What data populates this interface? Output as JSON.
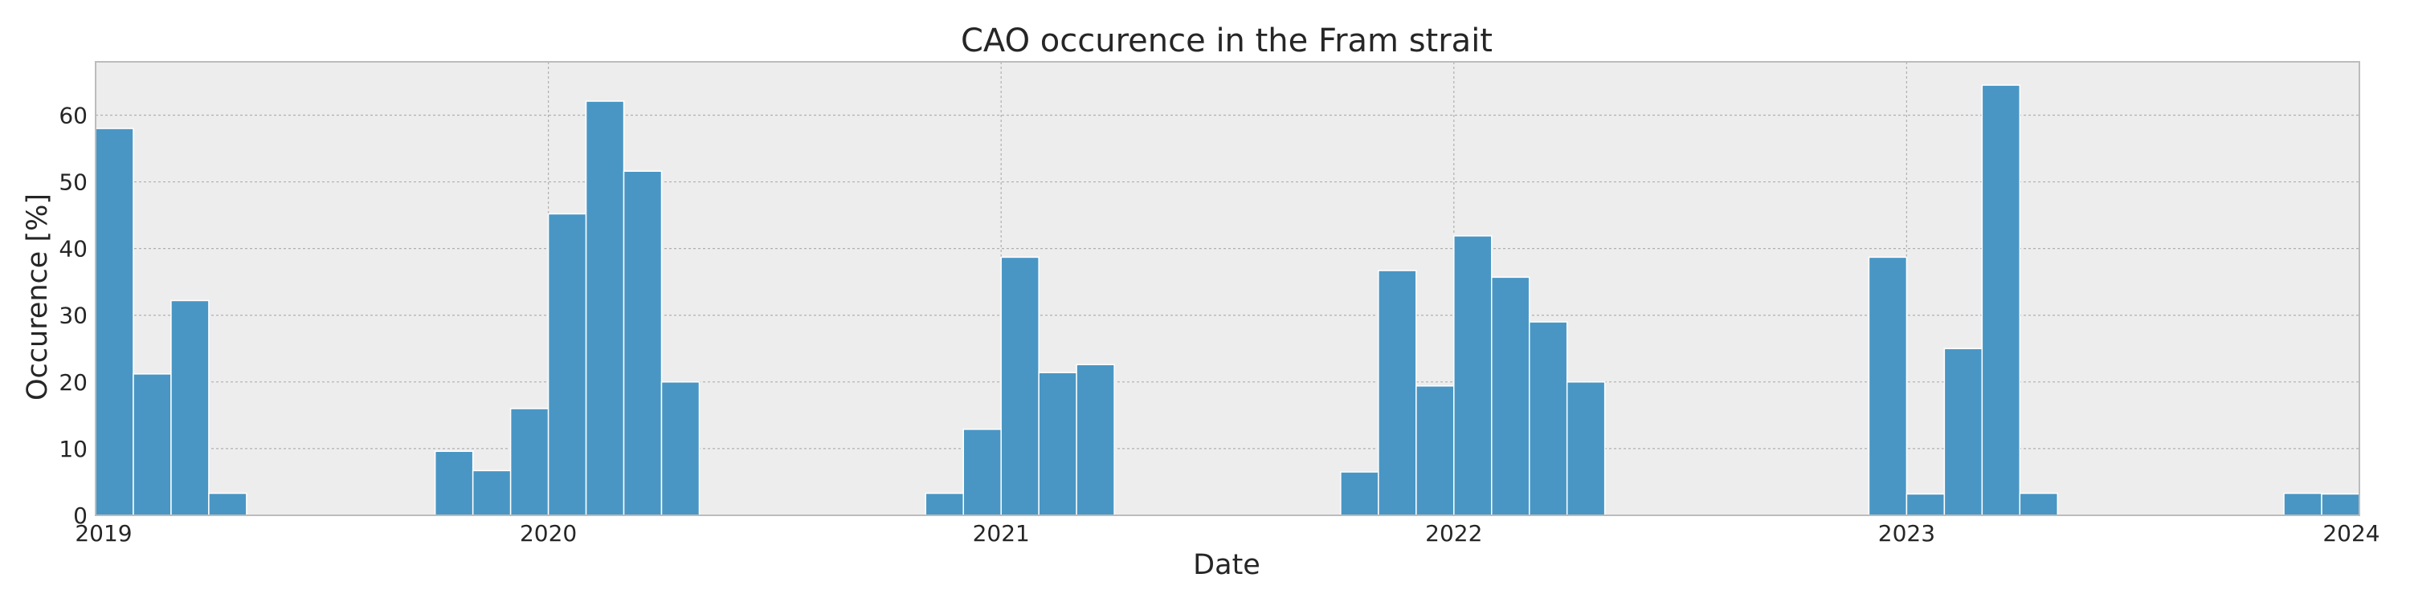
{
  "chart_data": {
    "type": "bar",
    "title": "CAO occurence in the Fram strait",
    "xlabel": "Date",
    "ylabel": "Occurence [%]",
    "x_axis_type": "date",
    "xlim": [
      "2019-01-01",
      "2024-01-01"
    ],
    "ylim": [
      0,
      68
    ],
    "xticks": [
      "2019",
      "2020",
      "2021",
      "2022",
      "2023",
      "2024"
    ],
    "yticks": [
      0,
      10,
      20,
      30,
      40,
      50,
      60
    ],
    "grid": true,
    "legend": "none",
    "bar_color": "#4996c4",
    "background_color": "#ededed",
    "bars": [
      {
        "start": "2019-01",
        "value": 58.0
      },
      {
        "start": "2019-02",
        "value": 21.2
      },
      {
        "start": "2019-03",
        "value": 32.2
      },
      {
        "start": "2019-04",
        "value": 3.3
      },
      {
        "start": "2019-10",
        "value": 9.6
      },
      {
        "start": "2019-11",
        "value": 6.7
      },
      {
        "start": "2019-12",
        "value": 16.0
      },
      {
        "start": "2020-01",
        "value": 45.2
      },
      {
        "start": "2020-02",
        "value": 62.1
      },
      {
        "start": "2020-03",
        "value": 51.6
      },
      {
        "start": "2020-04",
        "value": 20.0
      },
      {
        "start": "2020-11",
        "value": 3.3
      },
      {
        "start": "2020-12",
        "value": 12.9
      },
      {
        "start": "2021-01",
        "value": 38.7
      },
      {
        "start": "2021-02",
        "value": 21.4
      },
      {
        "start": "2021-03",
        "value": 22.6
      },
      {
        "start": "2021-10",
        "value": 6.5
      },
      {
        "start": "2021-11",
        "value": 36.7
      },
      {
        "start": "2021-12",
        "value": 19.4
      },
      {
        "start": "2022-01",
        "value": 41.9
      },
      {
        "start": "2022-02",
        "value": 35.7
      },
      {
        "start": "2022-03",
        "value": 29.0
      },
      {
        "start": "2022-04",
        "value": 20.0
      },
      {
        "start": "2022-12",
        "value": 38.7
      },
      {
        "start": "2023-01",
        "value": 3.2
      },
      {
        "start": "2023-02",
        "value": 25.0
      },
      {
        "start": "2023-03",
        "value": 64.5
      },
      {
        "start": "2023-04",
        "value": 3.3
      },
      {
        "start": "2023-11",
        "value": 3.3
      },
      {
        "start": "2023-12",
        "value": 3.2
      }
    ]
  }
}
